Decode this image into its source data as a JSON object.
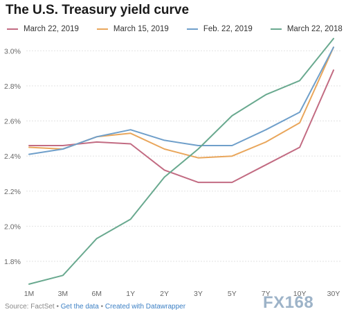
{
  "chart_data": {
    "type": "line",
    "title": "The U.S. Treasury yield curve",
    "categories": [
      "1M",
      "3M",
      "6M",
      "1Y",
      "2Y",
      "3Y",
      "5Y",
      "7Y",
      "10Y",
      "30Y"
    ],
    "ylim": [
      1.65,
      3.1
    ],
    "y_ticks": [
      1.8,
      2.0,
      2.2,
      2.4,
      2.6,
      2.8,
      3.0
    ],
    "y_tick_labels": [
      "1.8%",
      "2.0%",
      "2.2%",
      "2.4%",
      "2.6%",
      "2.8%",
      "3.0%"
    ],
    "grid": "horizontal",
    "legend_position": "top",
    "series": [
      {
        "name": "March 22, 2019",
        "color": "#c26b82",
        "values": [
          2.46,
          2.46,
          2.48,
          2.47,
          2.32,
          2.25,
          2.25,
          2.35,
          2.45,
          2.89
        ]
      },
      {
        "name": "March 15, 2019",
        "color": "#e9a65b",
        "values": [
          2.45,
          2.44,
          2.51,
          2.53,
          2.44,
          2.39,
          2.4,
          2.48,
          2.59,
          3.02
        ]
      },
      {
        "name": "Feb. 22, 2019",
        "color": "#6f9fca",
        "values": [
          2.41,
          2.44,
          2.51,
          2.55,
          2.49,
          2.46,
          2.46,
          2.55,
          2.65,
          3.02
        ]
      },
      {
        "name": "March 22, 2018",
        "color": "#69a98f",
        "values": [
          1.67,
          1.72,
          1.93,
          2.04,
          2.28,
          2.44,
          2.63,
          2.75,
          2.83,
          3.07
        ]
      }
    ]
  },
  "footer": {
    "source": "Source: FactSet",
    "sep1": " • ",
    "link1": "Get the data",
    "sep2": " • ",
    "link2": "Created with Datawrapper"
  },
  "watermark": "FX168"
}
